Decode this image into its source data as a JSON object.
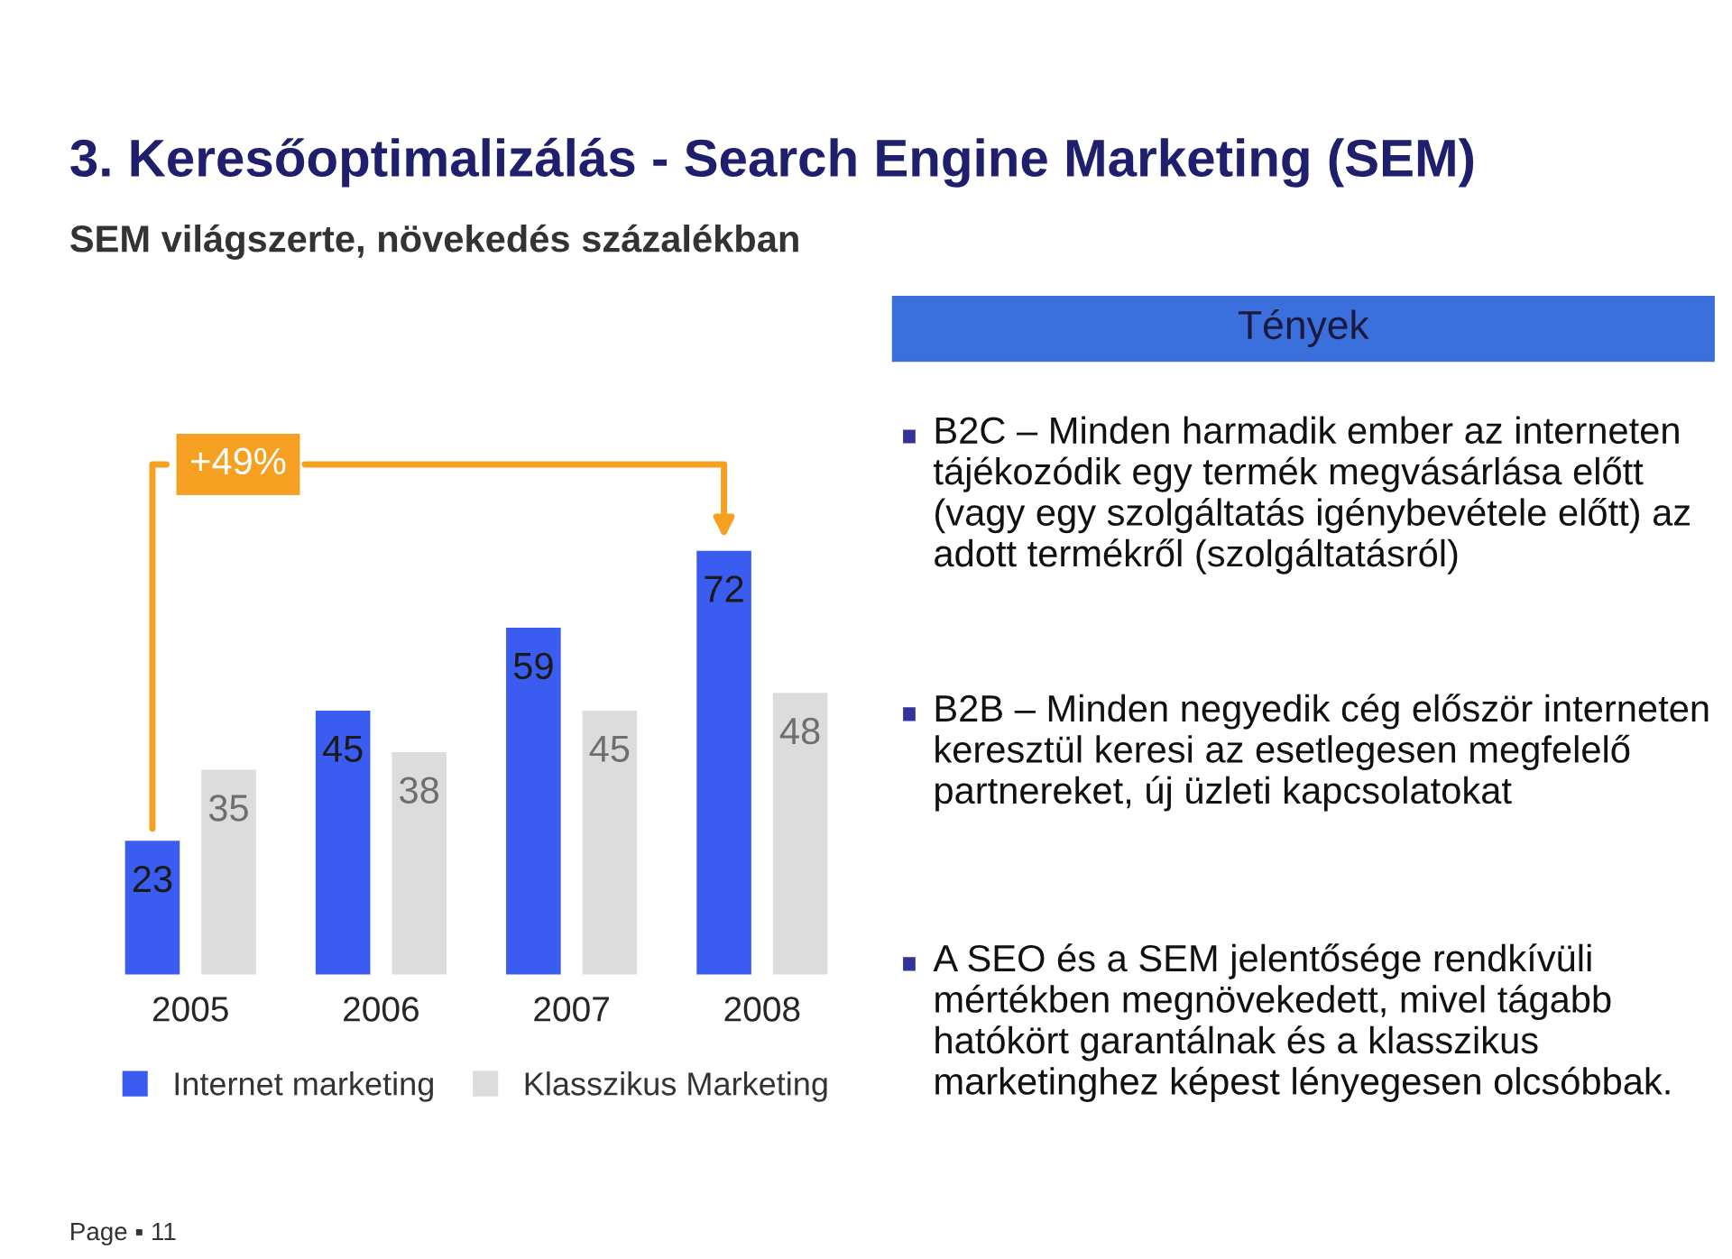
{
  "chart_data": [
    {
      "type": "bar",
      "title": "3. Keresőoptimalizálás - Search Engine Marketing (SEM)",
      "subtitle": "SEM világszerte, növekedés százalékban",
      "categories": [
        "2005",
        "2006",
        "2007",
        "2008"
      ],
      "series": [
        {
          "name": "Internet marketing",
          "color": "#3b5cf0",
          "values": [
            23,
            45,
            59,
            72
          ]
        },
        {
          "name": "Klasszikus Marketing",
          "color": "#dcdcdc",
          "values": [
            35,
            38,
            45,
            48
          ]
        }
      ],
      "data_labels": true,
      "legend": "bottom",
      "annotations": [
        "+49%",
        "Page ▪ 11"
      ]
    },
    {
      "type": "other",
      "title": "Tények",
      "annotations": [
        "B2C – Minden harmadik ember az interneten tájékozódik egy termék megvásárlása előtt (vagy egy szolgáltatás igénybevétele előtt) az adott termékről (szolgáltatásról)",
        "B2B – Minden negyedik cég először interneten keresztül keresi az esetlegesen megfelelő partnereket, új üzleti kapcsolatokat",
        "A SEO és a SEM jelentősége rendkívüli mértékben megnövekedett, mivel tágabb hatókört garantálnak és a klasszikus marketinghez képest lényegesen olcsóbbak."
      ]
    }
  ]
}
